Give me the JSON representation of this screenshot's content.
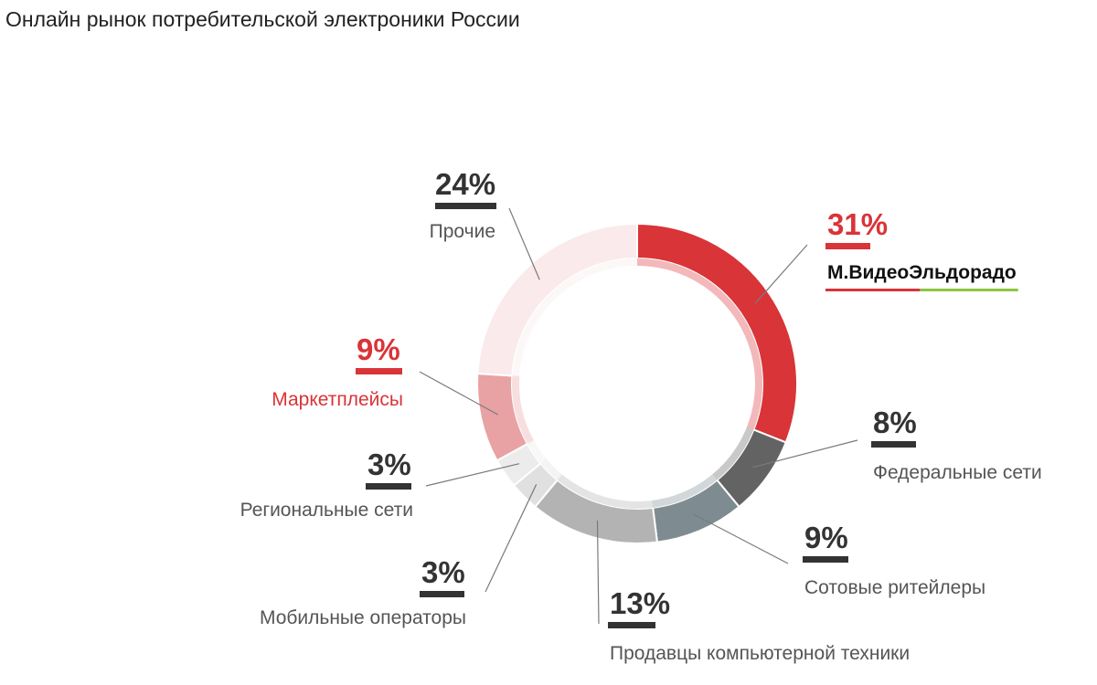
{
  "chart_data": {
    "type": "pie",
    "title": "Онлайн рынок потребительской электроники России",
    "categories": [
      "М.ВидеоЭльдорадо",
      "Федеральные сети",
      "Сотовые ритейлеры",
      "Продавцы компьютерной техники",
      "Мобильные операторы",
      "Региональные сети",
      "Маркетплейсы",
      "Прочие"
    ],
    "values": [
      31,
      8,
      9,
      13,
      3,
      3,
      9,
      24
    ],
    "value_labels": [
      "31%",
      "8%",
      "9%",
      "13%",
      "3%",
      "3%",
      "9%",
      "24%"
    ],
    "colors": [
      "#d93438",
      "#636363",
      "#7e8c92",
      "#b3b3b3",
      "#e0e0e0",
      "#ececec",
      "#e8a2a3",
      "#faeaeb"
    ],
    "highlight_color": "#d93438",
    "brand_underline_colors": [
      "#d93438",
      "#8cc63f"
    ],
    "legend": "callouts around donut"
  }
}
